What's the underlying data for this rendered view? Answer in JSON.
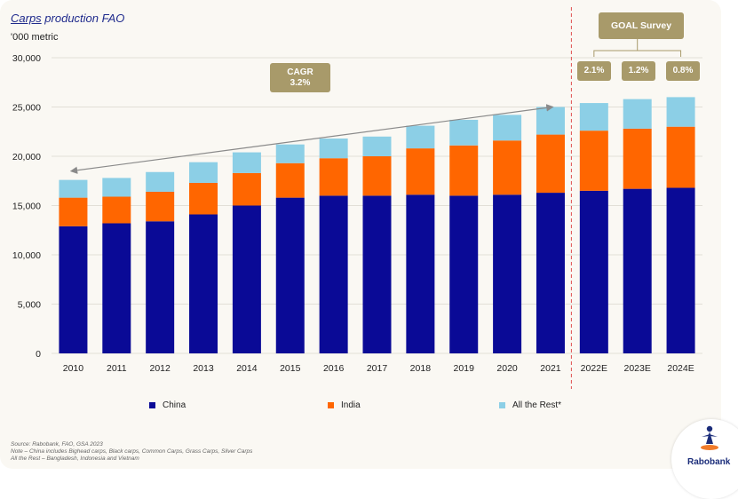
{
  "title_underlined": "Carps",
  "title_rest": " production FAO",
  "unit_label": "'000 metric",
  "goal_survey": {
    "label": "GOAL Survey",
    "growth": [
      "2.1%",
      "1.2%",
      "0.8%"
    ]
  },
  "cagr": {
    "label": "CAGR",
    "value": "3.2%"
  },
  "notes": [
    "Source: Rabobank, FAO, GSA 2023",
    "Note – China includes Bighead carps, Black carps, Common Carps, Grass Carps, Silver Carps",
    "All the Rest – Bangladesh, Indonesia and Vietnam"
  ],
  "logo_text": "Rabobank",
  "colors": {
    "china": "#0a0a96",
    "india": "#ff6600",
    "rest": "#8ccfe6",
    "box": "#a89a6a",
    "divider": "#e05050"
  },
  "chart_data": {
    "type": "bar",
    "stacked": true,
    "title": "Carps production FAO",
    "ylabel": "'000 metric",
    "ylim": [
      0,
      30000
    ],
    "yticks": [
      0,
      5000,
      10000,
      15000,
      20000,
      25000,
      30000
    ],
    "ytick_labels": [
      "0",
      "5,000",
      "10,000",
      "15,000",
      "20,000",
      "25,000",
      "30,000"
    ],
    "categories": [
      "2010",
      "2011",
      "2012",
      "2013",
      "2014",
      "2015",
      "2016",
      "2017",
      "2018",
      "2019",
      "2020",
      "2021",
      "2022E",
      "2023E",
      "2024E"
    ],
    "series": [
      {
        "name": "China",
        "values": [
          12900,
          13200,
          13400,
          14100,
          15000,
          15800,
          16000,
          16000,
          16100,
          16000,
          16100,
          16300,
          16500,
          16700,
          16800
        ]
      },
      {
        "name": "India",
        "values": [
          2900,
          2700,
          3000,
          3200,
          3300,
          3500,
          3800,
          4000,
          4700,
          5100,
          5500,
          5900,
          6100,
          6100,
          6200
        ]
      },
      {
        "name": "All the Rest*",
        "values": [
          1800,
          1900,
          2000,
          2100,
          2100,
          1900,
          2000,
          2000,
          2300,
          2600,
          2600,
          2800,
          2800,
          3000,
          3000
        ]
      }
    ],
    "legend_position": "bottom",
    "grid": true
  }
}
